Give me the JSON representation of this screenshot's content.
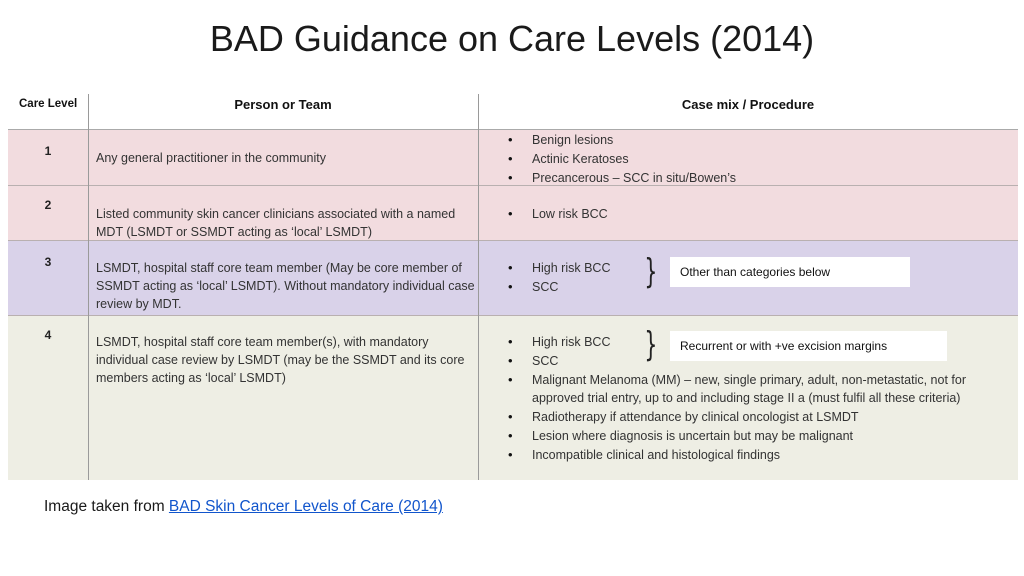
{
  "title": "BAD Guidance on Care Levels (2014)",
  "table": {
    "headers": [
      "Care Level",
      "Person or Team",
      "Case mix / Procedure"
    ],
    "rows": [
      {
        "level": "1",
        "person": "Any general practitioner in the community",
        "items": [
          "Benign lesions",
          "Actinic Keratoses",
          "Precancerous – SCC in situ/Bowen’s"
        ]
      },
      {
        "level": "2",
        "person": "Listed community skin cancer clinicians associated with a named MDT (LSMDT or SSMDT acting as ‘local’ LSMDT)",
        "items": [
          "Low risk BCC"
        ]
      },
      {
        "level": "3",
        "person": "LSMDT, hospital staff core team member (May be core member of SSMDT acting as ‘local’ LSMDT).  Without mandatory individual case review by MDT.",
        "items": [
          "High risk BCC",
          "SCC"
        ],
        "note": "Other than categories below"
      },
      {
        "level": "4",
        "person": "LSMDT, hospital staff core team  member(s), with mandatory individual case review by LSMDT (may be the SSMDT and its core members acting as ‘local’ LSMDT)",
        "items": [
          "High risk BCC",
          "SCC",
          "Malignant Melanoma (MM) – new, single primary, adult, non-metastatic, not for approved trial entry, up to and including stage II a (must fulfil all these criteria)",
          "Radiotherapy if attendance by clinical oncologist at LSMDT",
          "Lesion where diagnosis is uncertain but may be malignant",
          "Incompatible clinical and histological findings"
        ],
        "note": "Recurrent or with +ve excision margins"
      }
    ]
  },
  "footer": {
    "prefix": "Image taken from ",
    "link_text": "BAD Skin Cancer Levels of Care (2014)"
  },
  "colors": {
    "row_pink": "#f2dcdf",
    "row_purple": "#d9d2e9",
    "row_beige": "#eeeee4",
    "link": "#1155cc"
  }
}
